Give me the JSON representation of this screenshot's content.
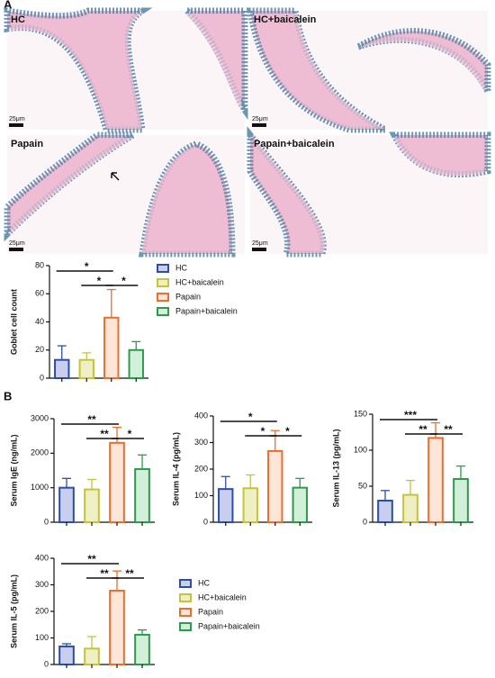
{
  "histology": {
    "panel_label": "A",
    "images": [
      {
        "label": "HC",
        "scale": "25μm"
      },
      {
        "label": "HC+baicalein",
        "scale": "25μm"
      },
      {
        "label": "Papain",
        "scale": "25μm"
      },
      {
        "label": "Papain+baicalein",
        "scale": "25μm"
      }
    ]
  },
  "panel_b_label": "B",
  "chart_data": [
    {
      "type": "bar",
      "y_label": "Goblet cell count",
      "categories": [
        "HC",
        "HC+baicalein",
        "Papain",
        "Papain+baicalein"
      ],
      "values": [
        13,
        13,
        43,
        20
      ],
      "errors": [
        10,
        5,
        20,
        6
      ],
      "ylim": [
        0,
        80
      ],
      "yticks": [
        0,
        20,
        40,
        60,
        80
      ],
      "colors": [
        "#2b4fa8",
        "#c4c43a",
        "#f26b2a",
        "#2e9a4c"
      ],
      "fill_colors": [
        "#c9cdee",
        "#efefc4",
        "#fde6d8",
        "#d2efd9"
      ],
      "significance": [
        {
          "pair": [
            "HC",
            "Papain"
          ],
          "label": "*"
        },
        {
          "pair": [
            "HC+baicalein",
            "Papain"
          ],
          "label": "*"
        },
        {
          "pair": [
            "Papain",
            "Papain+baicalein"
          ],
          "label": "*"
        }
      ]
    },
    {
      "type": "bar",
      "y_label": "Serum IgE (ng/mL)",
      "categories": [
        "HC",
        "HC+baicalein",
        "Papain",
        "Papain+baicalein"
      ],
      "values": [
        1000,
        950,
        2300,
        1540
      ],
      "errors": [
        270,
        290,
        450,
        410
      ],
      "ylim": [
        0,
        3000
      ],
      "yticks": [
        0,
        1000,
        2000,
        3000
      ],
      "colors": [
        "#2b4fa8",
        "#c4c43a",
        "#f26b2a",
        "#2e9a4c"
      ],
      "fill_colors": [
        "#c9cdee",
        "#efefc4",
        "#fde6d8",
        "#d2efd9"
      ],
      "significance": [
        {
          "pair": [
            "HC",
            "Papain"
          ],
          "label": "**"
        },
        {
          "pair": [
            "HC+baicalein",
            "Papain"
          ],
          "label": "**"
        },
        {
          "pair": [
            "Papain",
            "Papain+baicalein"
          ],
          "label": "*"
        }
      ]
    },
    {
      "type": "bar",
      "y_label": "Serum IL-4 (pg/mL)",
      "categories": [
        "HC",
        "HC+baicalein",
        "Papain",
        "Papain+baicalein"
      ],
      "values": [
        125,
        128,
        268,
        130
      ],
      "errors": [
        47,
        50,
        77,
        35
      ],
      "ylim": [
        0,
        400
      ],
      "yticks": [
        0,
        100,
        200,
        300,
        400
      ],
      "colors": [
        "#2b4fa8",
        "#c4c43a",
        "#f26b2a",
        "#2e9a4c"
      ],
      "fill_colors": [
        "#c9cdee",
        "#efefc4",
        "#fde6d8",
        "#d2efd9"
      ],
      "significance": [
        {
          "pair": [
            "HC",
            "Papain"
          ],
          "label": "*"
        },
        {
          "pair": [
            "HC+baicalein",
            "Papain"
          ],
          "label": "*"
        },
        {
          "pair": [
            "Papain",
            "Papain+baicalein"
          ],
          "label": "*"
        }
      ]
    },
    {
      "type": "bar",
      "y_label": "Serum IL-13 (pg/mL)",
      "categories": [
        "HC",
        "HC+baicalein",
        "Papain",
        "Papain+baicalein"
      ],
      "values": [
        30,
        38,
        117,
        60
      ],
      "errors": [
        14,
        20,
        21,
        18
      ],
      "ylim": [
        0,
        150
      ],
      "yticks": [
        0,
        50,
        100,
        150
      ],
      "colors": [
        "#2b4fa8",
        "#c4c43a",
        "#f26b2a",
        "#2e9a4c"
      ],
      "fill_colors": [
        "#c9cdee",
        "#efefc4",
        "#fde6d8",
        "#d2efd9"
      ],
      "significance": [
        {
          "pair": [
            "HC",
            "Papain"
          ],
          "label": "***"
        },
        {
          "pair": [
            "HC+baicalein",
            "Papain"
          ],
          "label": "**"
        },
        {
          "pair": [
            "Papain",
            "Papain+baicalein"
          ],
          "label": "**"
        }
      ]
    },
    {
      "type": "bar",
      "y_label": "Serum IL-5 (pg/mL)",
      "categories": [
        "HC",
        "HC+baicalein",
        "Papain",
        "Papain+baicalein"
      ],
      "values": [
        68,
        60,
        278,
        112
      ],
      "errors": [
        10,
        45,
        74,
        18
      ],
      "ylim": [
        0,
        400
      ],
      "yticks": [
        0,
        100,
        200,
        300,
        400
      ],
      "colors": [
        "#2b4fa8",
        "#c4c43a",
        "#f26b2a",
        "#2e9a4c"
      ],
      "fill_colors": [
        "#c9cdee",
        "#efefc4",
        "#fde6d8",
        "#d2efd9"
      ],
      "significance": [
        {
          "pair": [
            "HC",
            "Papain"
          ],
          "label": "**"
        },
        {
          "pair": [
            "HC+baicalein",
            "Papain"
          ],
          "label": "**"
        },
        {
          "pair": [
            "Papain",
            "Papain+baicalein"
          ],
          "label": "**"
        }
      ]
    }
  ]
}
